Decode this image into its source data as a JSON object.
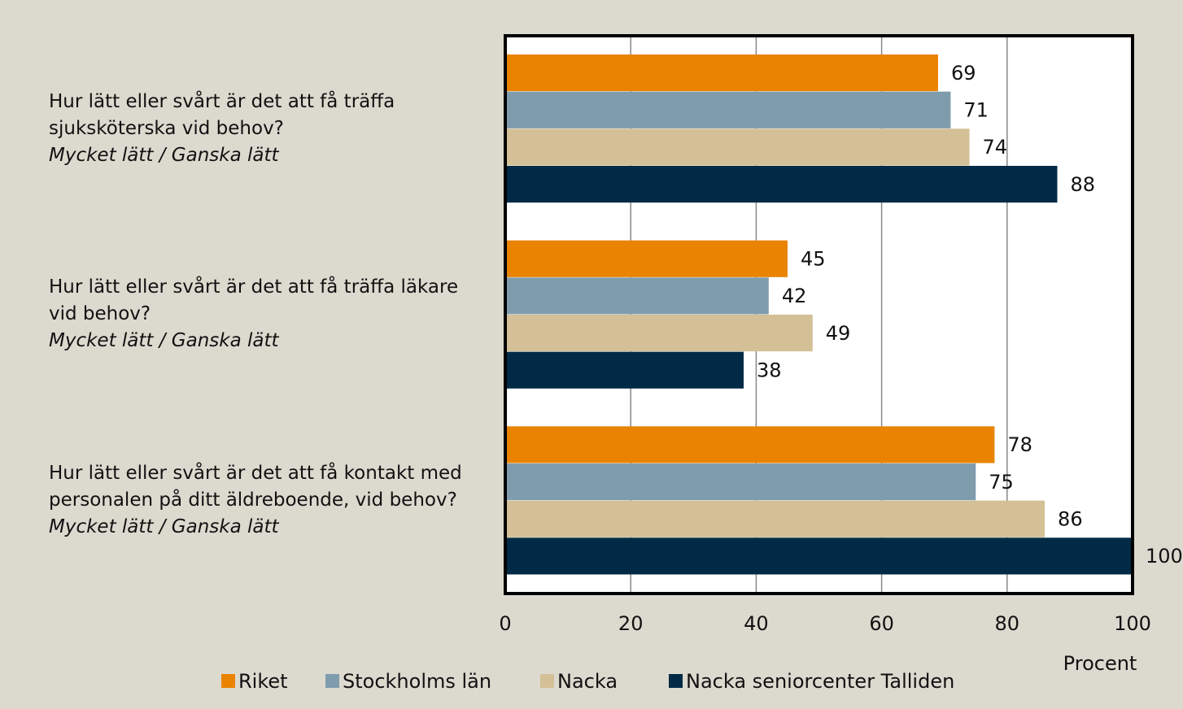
{
  "chart_data": {
    "type": "bar",
    "orientation": "horizontal",
    "categories": [
      "Hur lätt eller svårt är det att få träffa sjuksköterska vid behov?",
      "Hur lätt eller svårt är det att få träffa läkare vid behov?",
      "Hur lätt eller svårt är det att få kontakt med personalen på ditt äldreboende, vid behov?"
    ],
    "category_notes": [
      "Mycket lätt / Ganska lätt",
      "Mycket lätt / Ganska lätt",
      "Mycket lätt / Ganska lätt"
    ],
    "series": [
      {
        "name": "Riket",
        "color": "#e98300",
        "values": [
          69,
          45,
          78
        ]
      },
      {
        "name": "Stockholms län",
        "color": "#7f9cad",
        "values": [
          71,
          42,
          75
        ]
      },
      {
        "name": "Nacka",
        "color": "#d4c096",
        "values": [
          74,
          49,
          86
        ]
      },
      {
        "name": "Nacka seniorcenter Talliden",
        "color": "#002a45",
        "values": [
          88,
          38,
          100
        ]
      }
    ],
    "xlabel": "Procent",
    "xlim": [
      0,
      100
    ],
    "xticks": [
      0,
      20,
      40,
      60,
      80,
      100
    ],
    "grid": true,
    "legend": "bottom"
  }
}
